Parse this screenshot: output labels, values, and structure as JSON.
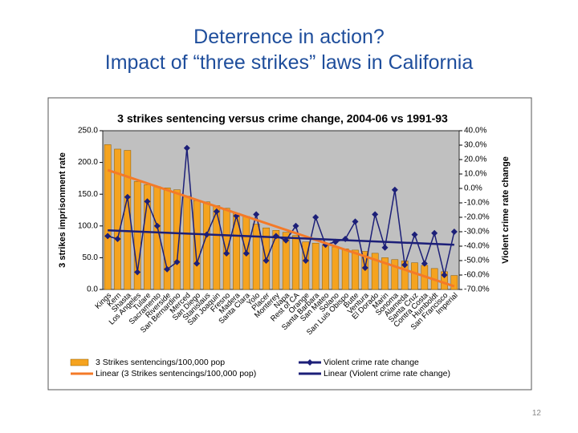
{
  "slide": {
    "title_lines": [
      "Deterrence in action?",
      "Impact of “three strikes” laws in California"
    ],
    "page_number": "12"
  },
  "chart_data": {
    "type": "combo",
    "title": "3 strikes sentencing versus crime change, 2004-06 vs 1991-93",
    "y_label": "3 strikes imprisonment rate",
    "y2_label": "Violent crime rate change",
    "categories": [
      "Kings",
      "Kern",
      "Shasta",
      "Los Angeles",
      "Tulare",
      "Sacramento",
      "Riverside",
      "San Bernardino",
      "Merced",
      "San Diego",
      "Stanislaus",
      "San Joaquin",
      "Fresno",
      "Madera",
      "Santa Clara",
      "Yolo",
      "Placer",
      "Monterey",
      "Napa",
      "Rest of CA",
      "Orange",
      "Santa Barbara",
      "San Mateo",
      "Solano",
      "San Luis Obispo",
      "Butte",
      "Ventura",
      "El Dorado",
      "Marin",
      "Sonoma",
      "Alameda",
      "Santa Cruz",
      "Contra Costa",
      "Humboldt",
      "San Francisco",
      "Imperial"
    ],
    "series": [
      {
        "name": "3 Strikes sentencings/100,000 pop",
        "kind": "bar",
        "color": "#f5a31f",
        "values": [
          228,
          221,
          219,
          170,
          165,
          162,
          160,
          157,
          147,
          140,
          138,
          132,
          128,
          120,
          115,
          103,
          97,
          93,
          90,
          85,
          75,
          73,
          70,
          67,
          64,
          62,
          60,
          57,
          50,
          47,
          45,
          42,
          38,
          33,
          28,
          22
        ]
      },
      {
        "name": "Violent crime rate change",
        "kind": "line",
        "axis": "y2",
        "color": "#1c1f78",
        "values": [
          -33,
          -35,
          -6,
          -58,
          -9,
          -26,
          -56,
          -51,
          28,
          -52,
          -32,
          -16,
          -45,
          -19,
          -45,
          -18,
          -50,
          -33,
          -36,
          -26,
          -50,
          -20,
          -39,
          -37,
          -35,
          -23,
          -55,
          -18,
          -41,
          -1,
          -53,
          -32,
          -52,
          -31,
          -60,
          -30
        ]
      }
    ],
    "trendlines": [
      {
        "name": "Linear (3 Strikes sentencings/100,000 pop)",
        "color": "#f47a28",
        "values": [
          188,
          5
        ]
      },
      {
        "name": "Linear (Violent crime rate change)",
        "axis": "y2",
        "color": "#1c1f78",
        "values": [
          -29,
          -39
        ]
      }
    ],
    "ylim": [
      0,
      250
    ],
    "yticks": [
      {
        "value": 0,
        "label": "0.0"
      },
      {
        "value": 50,
        "label": "50.0"
      },
      {
        "value": 100,
        "label": "100.0"
      },
      {
        "value": 150,
        "label": "150.0"
      },
      {
        "value": 200,
        "label": "200.0"
      },
      {
        "value": 250,
        "label": "250.0"
      }
    ],
    "y2lim": [
      -70,
      40
    ],
    "y2ticks": [
      {
        "value": 40,
        "label": "40.0%"
      },
      {
        "value": 30,
        "label": "30.0%"
      },
      {
        "value": 20,
        "label": "20.0%"
      },
      {
        "value": 10,
        "label": "10.0%"
      },
      {
        "value": 0,
        "label": "0.0%"
      },
      {
        "value": -10,
        "label": "-10.0%"
      },
      {
        "value": -20,
        "label": "-20.0%"
      },
      {
        "value": -30,
        "label": "-30.0%"
      },
      {
        "value": -40,
        "label": "-40.0%"
      },
      {
        "value": -50,
        "label": "-50.0%"
      },
      {
        "value": -60,
        "label": "-60.0%"
      },
      {
        "value": -70,
        "label": "-70.0%"
      }
    ],
    "plot_background": "#c0c0c0"
  }
}
